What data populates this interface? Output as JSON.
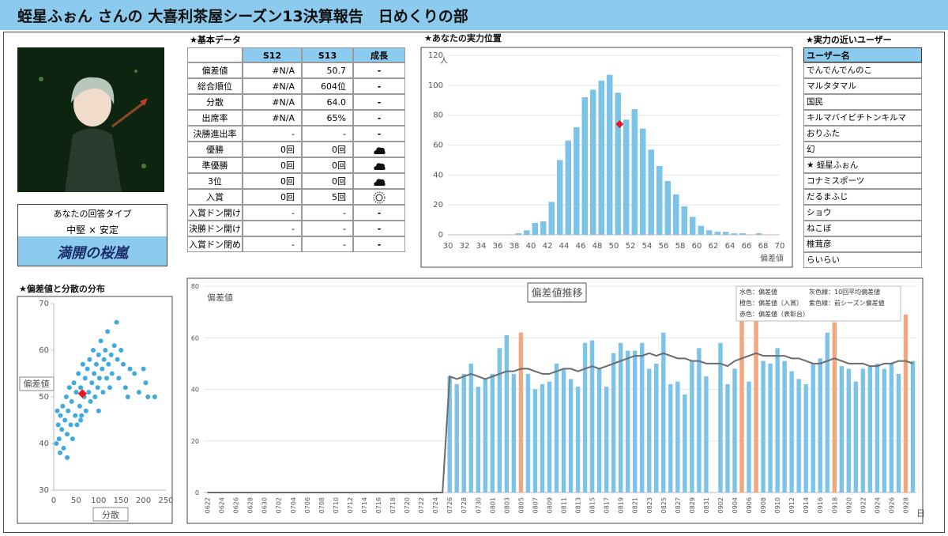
{
  "header": {
    "title": "蛭星ふぉん さんの 大喜利茶屋シーズン13決算報告　日めくりの部"
  },
  "profile": {
    "type_label": "あなたの回答タイプ",
    "type": "中堅 × 安定",
    "title": "満開の桜嵐"
  },
  "basic": {
    "title": "★基本データ",
    "columns": [
      "S12",
      "S13",
      "成長"
    ],
    "rows": [
      {
        "label": "偏差値",
        "s12": "#N/A",
        "s13": "50.7",
        "growth": "-"
      },
      {
        "label": "総合順位",
        "s12": "#N/A",
        "s13": "604位",
        "growth": "-"
      },
      {
        "label": "分散",
        "s12": "#N/A",
        "s13": "64.0",
        "growth": "-"
      },
      {
        "label": "出席率",
        "s12": "#N/A",
        "s13": "65%",
        "growth": "-"
      },
      {
        "label": "決勝進出率",
        "s12": "-",
        "s13": "-",
        "growth": "-"
      },
      {
        "label": "優勝",
        "s12": "0回",
        "s13": "0回",
        "icon": "cloud"
      },
      {
        "label": "準優勝",
        "s12": "0回",
        "s13": "0回",
        "icon": "cloud"
      },
      {
        "label": "3位",
        "s12": "0回",
        "s13": "0回",
        "icon": "cloud"
      },
      {
        "label": "入賞",
        "s12": "0回",
        "s13": "5回",
        "icon": "sun"
      },
      {
        "label": "入賞ドン開け",
        "s12": "-",
        "s13": "-",
        "growth": "-"
      },
      {
        "label": "決勝ドン開け",
        "s12": "-",
        "s13": "-",
        "growth": "-"
      },
      {
        "label": "入賞ドン閉め",
        "s12": "-",
        "s13": "-",
        "growth": "-"
      }
    ]
  },
  "users": {
    "title": "★実力の近いユーザー",
    "header": "ユーザー名",
    "names": [
      "でんでんでんのこ",
      "マルタタマル",
      "国民",
      "キルマバイビチトンキルマ",
      "おりふた",
      "幻",
      "★ 蛭星ふぉん",
      "コナミスポーツ",
      "だるまふじ",
      "ショウ",
      "ねこぼ",
      "椎茸彦",
      "らいらい"
    ]
  },
  "chart_data": [
    {
      "type": "histogram",
      "title": "★あなたの実力位置",
      "xlabel": "偏差値",
      "ylabel": "人",
      "color": "#7cc3ea",
      "grid": true,
      "bins": [
        38,
        39,
        40,
        41,
        42,
        43,
        44,
        45,
        46,
        47,
        48,
        49,
        50,
        51,
        52,
        53,
        54,
        55,
        56,
        57,
        58,
        59,
        60,
        61,
        62,
        63,
        64,
        65,
        66,
        67,
        68
      ],
      "values": [
        1,
        3,
        8,
        9,
        22,
        50,
        63,
        72,
        92,
        97,
        103,
        107,
        95,
        77,
        84,
        71,
        57,
        46,
        36,
        27,
        19,
        12,
        6,
        3,
        2,
        2,
        1,
        1,
        0,
        1
      ],
      "marker": {
        "x": 50.7,
        "y": 74,
        "color": "#e8151b"
      },
      "xlim": [
        30,
        70
      ],
      "xticks": [
        30,
        32,
        34,
        36,
        38,
        40,
        42,
        44,
        46,
        48,
        50,
        52,
        54,
        56,
        58,
        60,
        62,
        64,
        66,
        68,
        70
      ],
      "ylim": [
        0,
        120
      ],
      "yticks": [
        0,
        20,
        40,
        60,
        80,
        100,
        120
      ]
    },
    {
      "type": "scatter",
      "title": "★偏差値と分散の分布",
      "xlabel": "分散",
      "ylabel": "偏差値",
      "color": "#3fa9e0",
      "x": [
        10,
        12,
        15,
        18,
        20,
        22,
        25,
        28,
        30,
        32,
        35,
        38,
        40,
        42,
        45,
        48,
        50,
        52,
        55,
        58,
        60,
        62,
        65,
        68,
        70,
        72,
        75,
        78,
        80,
        82,
        85,
        88,
        90,
        92,
        95,
        98,
        100,
        102,
        105,
        108,
        110,
        112,
        115,
        118,
        120,
        122,
        125,
        128,
        130,
        135,
        140,
        142,
        145,
        150,
        155,
        160,
        165,
        170,
        180,
        190,
        200,
        205,
        210,
        225,
        6,
        8,
        14,
        30,
        60,
        100
      ],
      "y": [
        44,
        41,
        46,
        43,
        48,
        39,
        45,
        50,
        42,
        47,
        52,
        44,
        49,
        41,
        53,
        46,
        51,
        44,
        55,
        48,
        52,
        46,
        57,
        50,
        54,
        47,
        56,
        51,
        58,
        49,
        53,
        60,
        55,
        50,
        57,
        52,
        59,
        54,
        62,
        56,
        51,
        58,
        60,
        54,
        64,
        57,
        52,
        59,
        55,
        61,
        66,
        58,
        54,
        60,
        57,
        52,
        50,
        56,
        55,
        51,
        56,
        53,
        50,
        50,
        40,
        47,
        38,
        37,
        45,
        47
      ],
      "marker": {
        "x": 64.0,
        "y": 50.7,
        "color": "#e8151b"
      },
      "xlim": [
        0,
        250
      ],
      "xticks": [
        0,
        50,
        100,
        150,
        200,
        250
      ],
      "ylim": [
        30,
        70
      ],
      "yticks": [
        30,
        40,
        50,
        60,
        70
      ]
    },
    {
      "type": "bar",
      "title": "偏差値推移",
      "ylabel": "偏差値",
      "xlabel": "日",
      "legend": [
        "水色：偏差値",
        "灰色線：10回平均偏差値",
        "橙色：偏差値（入賞）",
        "紫色線：前シーズン偏差値",
        "赤色：偏差値（表彰台）"
      ],
      "categories": [
        "0622",
        null,
        "0624",
        null,
        "0626",
        null,
        "0628",
        null,
        "0630",
        null,
        "0702",
        null,
        "0704",
        null,
        "0706",
        null,
        "0708",
        null,
        "0710",
        null,
        "0712",
        null,
        "0714",
        null,
        "0716",
        null,
        "0718",
        null,
        "0720",
        null,
        "0722",
        null,
        "0724",
        null,
        "0726",
        null,
        "0728",
        null,
        "0730",
        null,
        "0801",
        null,
        "0803",
        null,
        "0805",
        null,
        "0807",
        null,
        "0809",
        null,
        "0811",
        null,
        "0813",
        null,
        "0815",
        null,
        "0817",
        null,
        "0819",
        null,
        "0821",
        null,
        "0823",
        null,
        "0825",
        null,
        "0827",
        null,
        "0829",
        null,
        "0831",
        null,
        "0902",
        null,
        "0904",
        null,
        "0906",
        null,
        "0908",
        null,
        "0910",
        null,
        "0912",
        null,
        "0914",
        null,
        "0916",
        null,
        "0918",
        null,
        "0920",
        null,
        "0922",
        null,
        "0924",
        null,
        "0926",
        null,
        "0928",
        null
      ],
      "series": [
        {
          "type": "bar",
          "color": "#7cc3ea",
          "values": [
            null,
            null,
            null,
            null,
            null,
            null,
            null,
            null,
            null,
            null,
            null,
            null,
            null,
            null,
            null,
            null,
            null,
            null,
            null,
            null,
            null,
            null,
            null,
            null,
            null,
            null,
            null,
            null,
            null,
            null,
            null,
            null,
            null,
            null,
            45,
            42,
            46,
            50,
            41,
            44,
            46,
            56,
            61,
            46,
            null,
            46,
            40,
            42,
            43,
            50,
            48,
            44,
            41,
            58,
            59,
            48,
            41,
            54,
            58,
            55,
            55,
            58,
            48,
            50,
            62,
            42,
            43,
            38,
            51,
            56,
            45,
            null,
            58,
            42,
            48,
            null,
            43,
            null,
            51,
            50,
            56,
            51,
            47,
            44,
            42,
            50,
            52,
            62,
            null,
            49,
            48,
            43,
            48,
            49,
            50,
            48,
            50,
            46,
            null,
            51
          ]
        },
        {
          "type": "bar",
          "color": "#f2a77f",
          "values": [
            null,
            null,
            null,
            null,
            null,
            null,
            null,
            null,
            null,
            null,
            null,
            null,
            null,
            null,
            null,
            null,
            null,
            null,
            null,
            null,
            null,
            null,
            null,
            null,
            null,
            null,
            null,
            null,
            null,
            null,
            null,
            null,
            null,
            null,
            null,
            null,
            null,
            null,
            null,
            null,
            null,
            null,
            null,
            null,
            62,
            null,
            null,
            null,
            null,
            null,
            null,
            null,
            null,
            null,
            null,
            null,
            null,
            null,
            null,
            null,
            null,
            null,
            null,
            null,
            null,
            null,
            null,
            null,
            null,
            null,
            null,
            null,
            null,
            null,
            null,
            68,
            null,
            71,
            null,
            null,
            null,
            null,
            null,
            null,
            null,
            null,
            null,
            null,
            66,
            null,
            null,
            null,
            null,
            null,
            null,
            null,
            null,
            null,
            69,
            null
          ]
        },
        {
          "type": "line",
          "color": "#6b6b6b",
          "values": [
            0,
            0,
            0,
            0,
            0,
            0,
            0,
            0,
            0,
            0,
            0,
            0,
            0,
            0,
            0,
            0,
            0,
            0,
            0,
            0,
            0,
            0,
            0,
            0,
            0,
            0,
            0,
            0,
            0,
            0,
            0,
            0,
            0,
            0,
            45,
            44,
            45,
            46,
            45,
            44,
            45,
            46,
            47,
            47,
            48,
            48,
            47,
            46,
            46,
            47,
            48,
            48,
            47,
            48,
            49,
            48,
            49,
            50,
            51,
            52,
            53,
            53,
            54,
            53,
            54,
            53,
            52,
            52,
            51,
            51,
            50,
            50,
            50,
            49,
            51,
            52,
            53,
            54,
            53,
            53,
            53,
            53,
            52,
            52,
            51,
            50,
            50,
            51,
            52,
            51,
            50,
            50,
            50,
            49,
            49,
            50,
            50,
            51,
            51,
            50
          ]
        }
      ],
      "ylim": [
        0,
        80
      ],
      "yticks": [
        0,
        20,
        40,
        60,
        80
      ],
      "grid": true
    }
  ]
}
